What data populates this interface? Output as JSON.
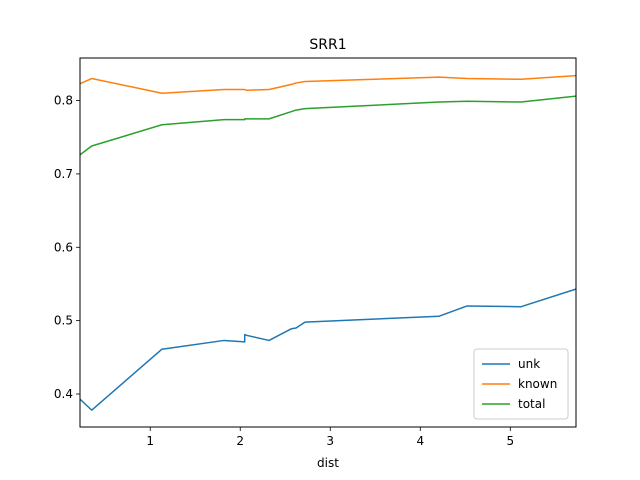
{
  "chart_data": {
    "type": "line",
    "title": "SRR1",
    "xlabel": "dist",
    "ylabel": "",
    "xlim": [
      0.22,
      5.73
    ],
    "ylim": [
      0.355,
      0.858
    ],
    "xticks": [
      1,
      2,
      3,
      4,
      5
    ],
    "yticks": [
      0.4,
      0.5,
      0.6,
      0.7,
      0.8
    ],
    "grid": false,
    "legend": "lower-right",
    "series": [
      {
        "name": "unk",
        "color": "#1f77b4",
        "x": [
          0.22,
          0.35,
          1.13,
          1.82,
          2.05,
          2.05,
          2.07,
          2.32,
          2.57,
          2.62,
          2.72,
          4.21,
          4.52,
          5.12,
          5.73
        ],
        "y": [
          0.393,
          0.378,
          0.461,
          0.473,
          0.471,
          0.481,
          0.48,
          0.473,
          0.489,
          0.49,
          0.498,
          0.506,
          0.52,
          0.519,
          0.543
        ]
      },
      {
        "name": "known",
        "color": "#ff7f0e",
        "x": [
          0.22,
          0.35,
          1.13,
          1.82,
          2.05,
          2.05,
          2.07,
          2.32,
          2.57,
          2.62,
          2.72,
          4.21,
          4.52,
          5.12,
          5.73
        ],
        "y": [
          0.823,
          0.83,
          0.81,
          0.815,
          0.815,
          0.815,
          0.814,
          0.815,
          0.822,
          0.824,
          0.826,
          0.832,
          0.83,
          0.829,
          0.834
        ]
      },
      {
        "name": "total",
        "color": "#2ca02c",
        "x": [
          0.22,
          0.35,
          1.13,
          1.82,
          2.05,
          2.05,
          2.07,
          2.32,
          2.57,
          2.62,
          2.72,
          4.21,
          4.52,
          5.12,
          5.73
        ],
        "y": [
          0.726,
          0.738,
          0.767,
          0.774,
          0.774,
          0.775,
          0.775,
          0.775,
          0.785,
          0.787,
          0.789,
          0.798,
          0.799,
          0.798,
          0.806
        ]
      }
    ]
  }
}
